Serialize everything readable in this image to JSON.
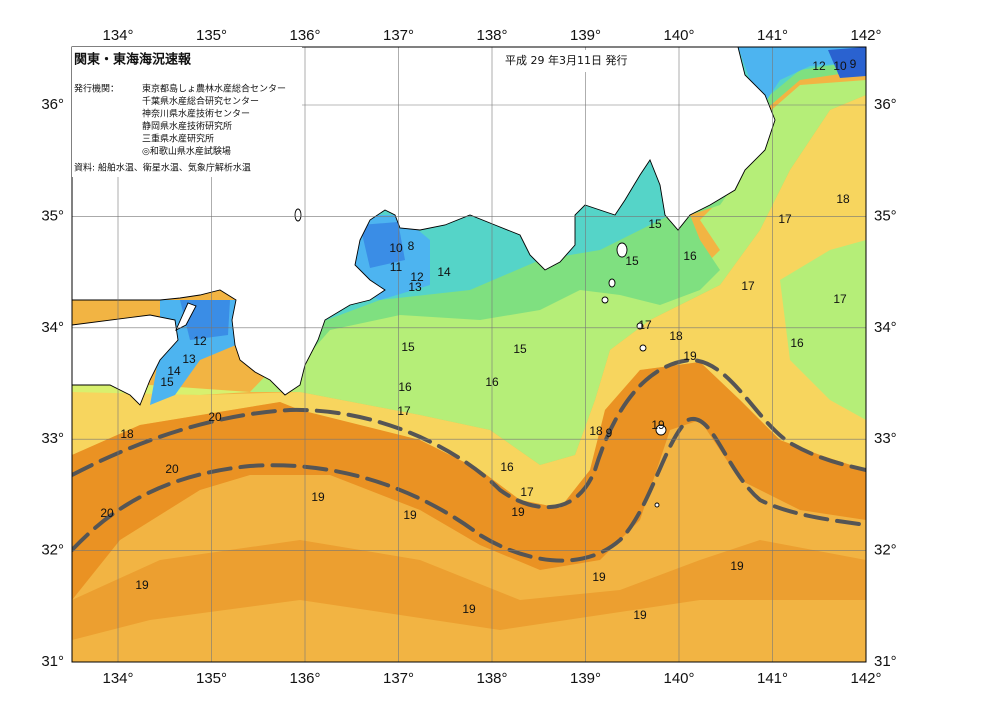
{
  "header": {
    "title": "関東・東海海況速報",
    "date": "平成 29 年3月11日 発行"
  },
  "issuers": {
    "label": "発行機関：",
    "names": [
      "東京都島しょ農林水産総合センター",
      "千葉県水産総合研究センター",
      "神奈川県水産技術センター",
      "静岡県水産技術研究所",
      "三重県水産研究所",
      "◎和歌山県水産試験場"
    ]
  },
  "source": "資料: 船舶水温、衛星水温、気象庁解析水温",
  "map": {
    "lon_ticks": [
      {
        "value": 134,
        "label": "134°"
      },
      {
        "value": 135,
        "label": "135°"
      },
      {
        "value": 136,
        "label": "136°"
      },
      {
        "value": 137,
        "label": "137°"
      },
      {
        "value": 138,
        "label": "138°"
      },
      {
        "value": 139,
        "label": "139°"
      },
      {
        "value": 140,
        "label": "140°"
      },
      {
        "value": 141,
        "label": "141°"
      },
      {
        "value": 142,
        "label": "142°"
      }
    ],
    "lat_ticks": [
      {
        "value": 31,
        "label": "31°"
      },
      {
        "value": 32,
        "label": "32°"
      },
      {
        "value": 33,
        "label": "33°"
      },
      {
        "value": 34,
        "label": "34°"
      },
      {
        "value": 35,
        "label": "35°"
      },
      {
        "value": 36,
        "label": "36°"
      }
    ],
    "contour_labels": [
      12,
      10,
      9,
      18,
      17,
      16,
      17,
      17,
      16,
      15,
      15,
      17,
      18,
      19,
      10,
      8,
      11,
      12,
      13,
      14,
      12,
      13,
      14,
      15,
      15,
      15,
      16,
      16,
      17,
      18,
      9,
      19,
      16,
      17,
      19,
      19,
      19,
      20,
      20,
      18,
      20,
      19,
      19,
      19,
      19,
      19
    ]
  }
}
